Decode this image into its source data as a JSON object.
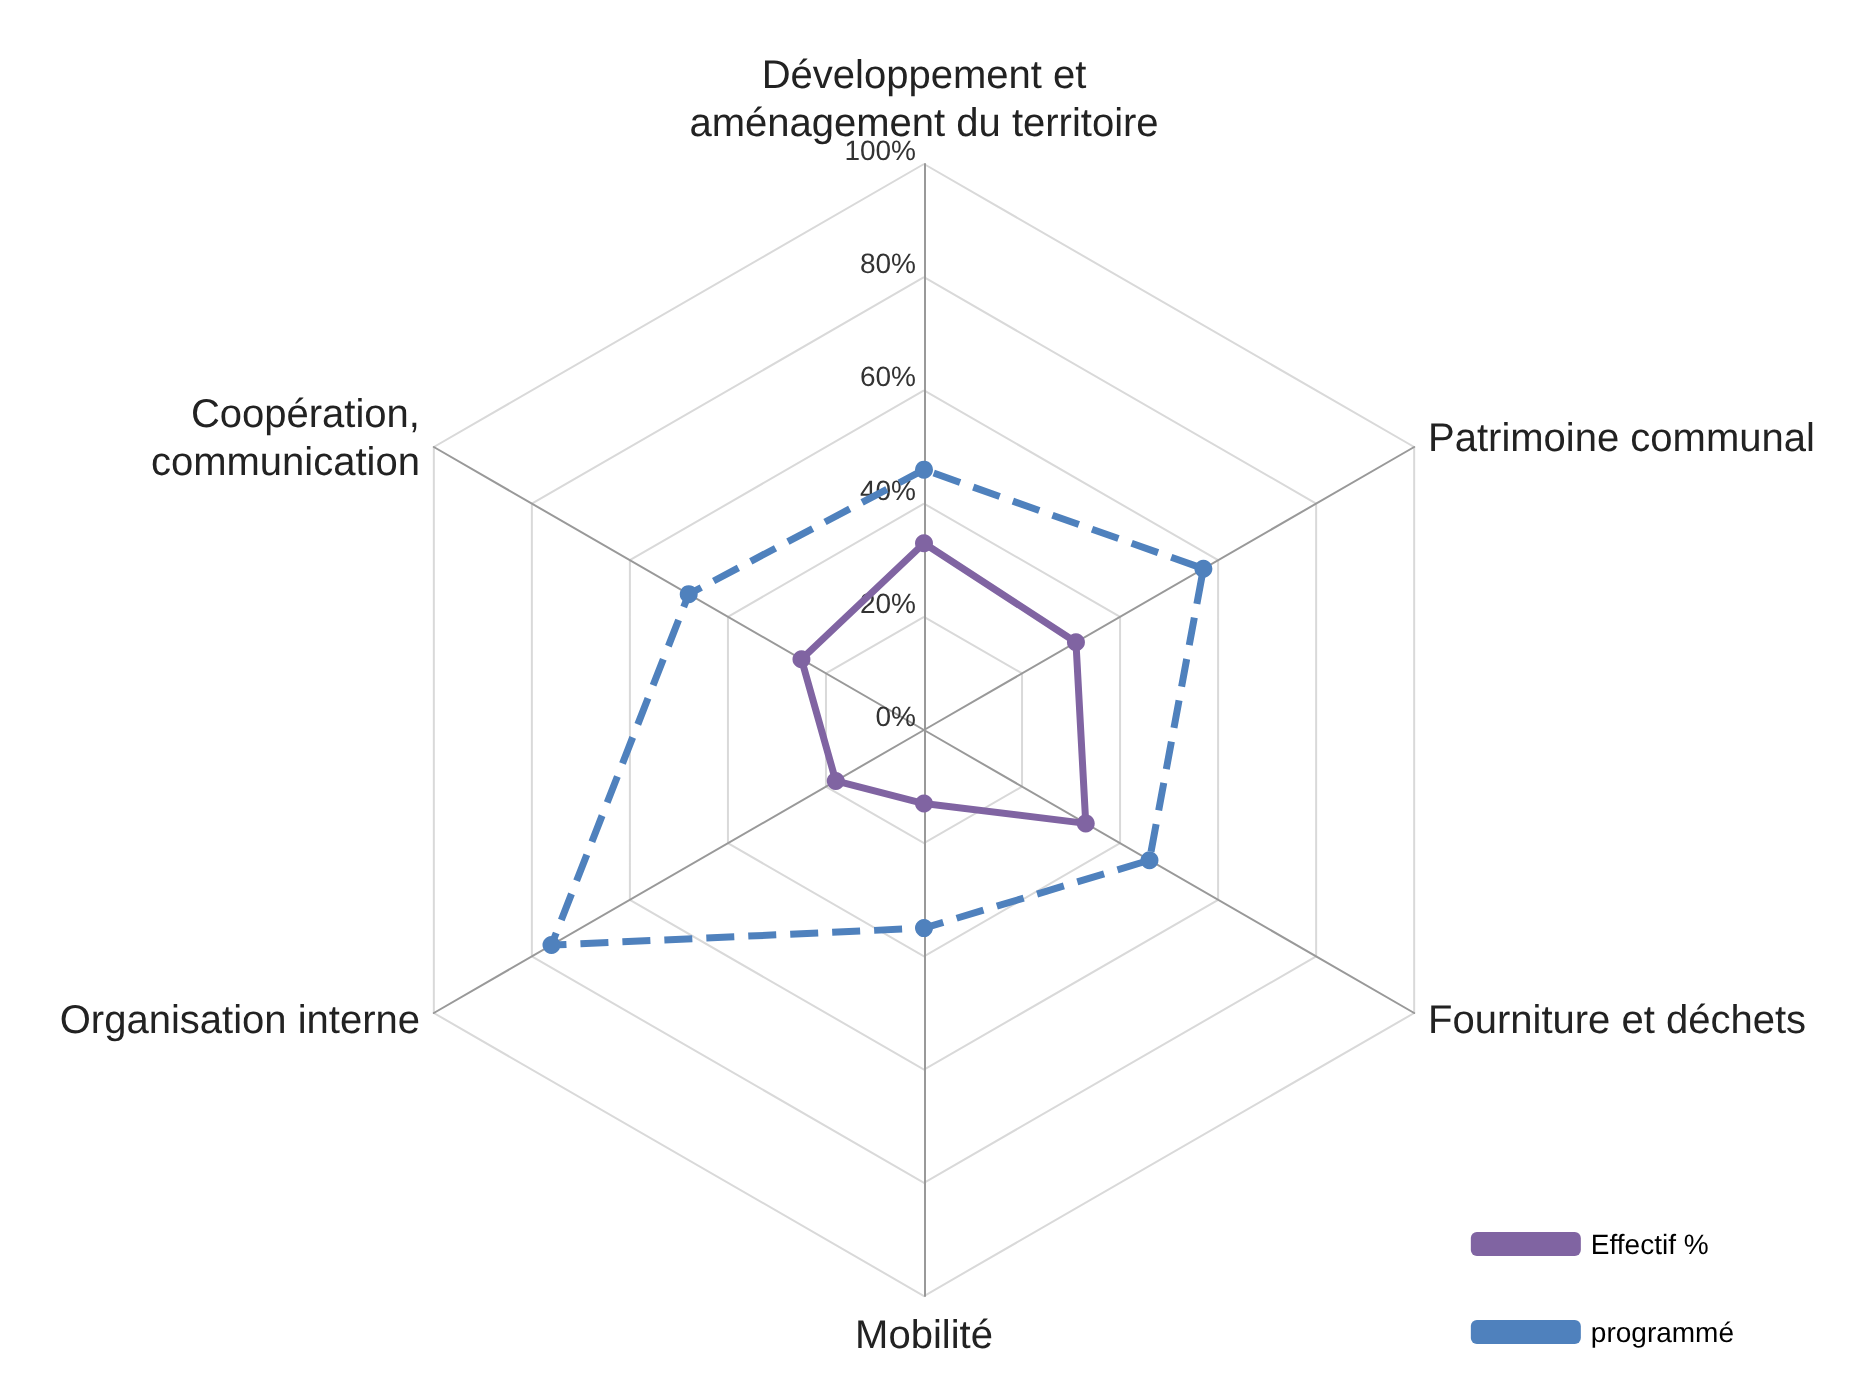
{
  "chart_data": {
    "type": "radar",
    "categories": [
      "Développement et\naménagement du territoire",
      "Patrimoine communal",
      "Fourniture et déchets",
      "Mobilité",
      "Organisation interne",
      "Coopération,\ncommunication"
    ],
    "series": [
      {
        "name": "Effectif %",
        "color": "#8064a2",
        "values": [
          33,
          31,
          33,
          13,
          18,
          25
        ],
        "line_style": "solid"
      },
      {
        "name": "programmé",
        "color": "#4f81bd",
        "values": [
          46,
          57,
          46,
          35,
          76,
          48
        ],
        "line_style": "dashed"
      }
    ],
    "ylim": [
      0,
      100
    ],
    "yticks": [
      {
        "value": 0,
        "label": "0%"
      },
      {
        "value": 20,
        "label": "20%"
      },
      {
        "value": 40,
        "label": "40%"
      },
      {
        "value": 60,
        "label": "60%"
      },
      {
        "value": 80,
        "label": "80%"
      },
      {
        "value": 100,
        "label": "100%"
      }
    ],
    "grid": true,
    "legend": "bottom right",
    "marker": "circle"
  }
}
